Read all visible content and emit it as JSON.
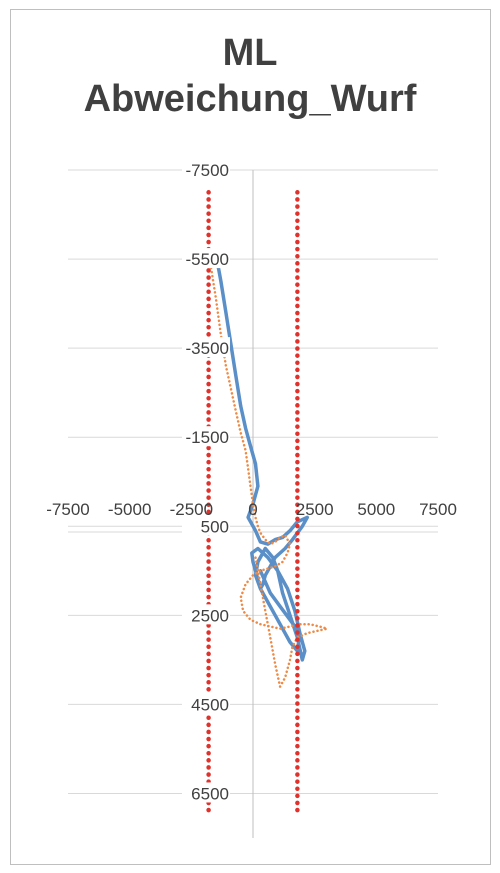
{
  "chart_data": {
    "type": "scatter",
    "title_lines": [
      "ML",
      "Abweichung_Wurf"
    ],
    "xlabel": "",
    "ylabel": "",
    "xlim": [
      -7500,
      7500
    ],
    "ylim": [
      -7500,
      7500
    ],
    "y_reversed": true,
    "x_ticks": [
      "-7500",
      "-5000",
      "-2500",
      "0",
      "2500",
      "5000",
      "7500"
    ],
    "y_ticks": [
      "-7500",
      "-5500",
      "-3500",
      "-1500",
      "500",
      "2500",
      "4500",
      "6500"
    ],
    "grid": true,
    "legend": "none",
    "series": [
      {
        "style": "solid-line",
        "color": "#5b8fc7",
        "x": [
          -1500,
          -1300,
          -1100,
          -900,
          -700,
          -500,
          -300,
          -100,
          100,
          200,
          0,
          -200,
          100,
          300,
          600,
          900,
          1200,
          1500,
          1800,
          2200,
          2000,
          1600,
          1300,
          1100,
          900,
          700,
          500,
          400,
          300,
          200,
          100,
          0,
          -50,
          200,
          600,
          1000,
          1400,
          1700,
          1900,
          1800,
          1500,
          1200,
          900,
          600,
          300,
          100,
          200,
          500,
          800,
          1000,
          1200,
          1500,
          1800,
          2000,
          2100,
          1900,
          1500,
          1100,
          700,
          300
        ],
        "y": [
          -5600,
          -5000,
          -4300,
          -3600,
          -2900,
          -2200,
          -1700,
          -1300,
          -900,
          -400,
          0,
          300,
          600,
          850,
          900,
          800,
          750,
          600,
          400,
          300,
          500,
          800,
          1000,
          1100,
          1200,
          1400,
          1600,
          1800,
          1900,
          1700,
          1500,
          1300,
          1100,
          1000,
          1200,
          1500,
          1900,
          2400,
          2900,
          3300,
          3100,
          2800,
          2500,
          2200,
          1900,
          1600,
          1300,
          1000,
          1200,
          1500,
          2000,
          2500,
          3000,
          3500,
          3300,
          2900,
          2600,
          2300,
          2000,
          1500
        ]
      },
      {
        "style": "dotted-line",
        "color": "#ee8a45",
        "x": [
          -1700,
          -1500,
          -1300,
          -1100,
          -900,
          -700,
          -500,
          -300,
          -200,
          -100,
          0,
          100,
          200,
          300,
          500,
          700,
          900,
          1100,
          1300,
          1500,
          1400,
          1200,
          900,
          600,
          300,
          0,
          -300,
          -500,
          -400,
          -100,
          300,
          700,
          1100,
          1500,
          1900,
          2300,
          2700,
          3000,
          2600,
          2200,
          1800,
          1600,
          1500,
          1300,
          1100,
          900,
          700,
          500,
          300,
          100
        ],
        "y": [
          -5300,
          -4600,
          -3800,
          -3100,
          -2600,
          -2100,
          -1600,
          -1200,
          -800,
          -400,
          0,
          300,
          500,
          650,
          800,
          900,
          850,
          750,
          700,
          900,
          1100,
          1300,
          1400,
          1450,
          1500,
          1600,
          1800,
          2100,
          2400,
          2600,
          2700,
          2750,
          2800,
          2750,
          2700,
          2700,
          2750,
          2800,
          2850,
          2900,
          3000,
          3200,
          3500,
          3900,
          4100,
          3600,
          3000,
          2400,
          1800,
          1200
        ]
      },
      {
        "style": "dotted-line",
        "color": "#e0322c",
        "x": [
          -1800,
          -1800
        ],
        "y": [
          -7000,
          7000
        ]
      },
      {
        "style": "dotted-line",
        "color": "#e0322c",
        "x": [
          1800,
          1800
        ],
        "y": [
          -7000,
          7000
        ]
      }
    ]
  }
}
